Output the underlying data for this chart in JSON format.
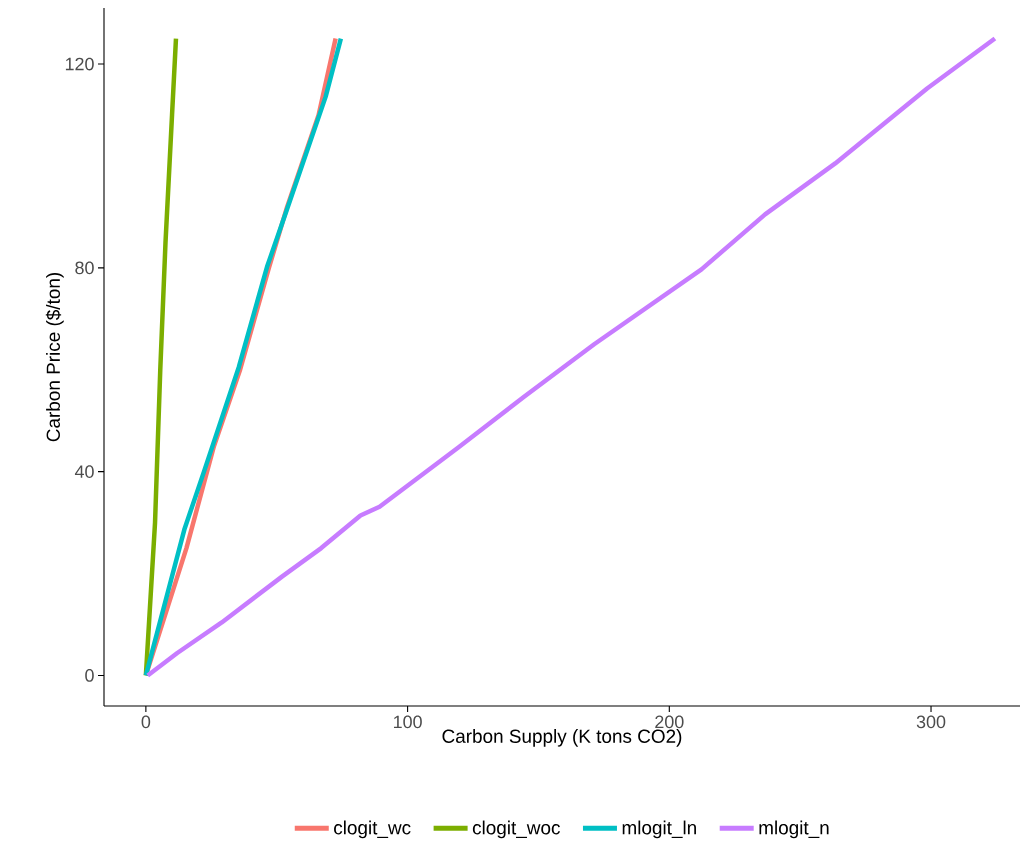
{
  "chart_data": {
    "type": "line",
    "xlabel": "Carbon Supply (K tons CO2)",
    "ylabel": "Carbon Price ($/ton)",
    "xlim": [
      -16,
      334
    ],
    "ylim": [
      -6,
      131
    ],
    "xticks": [
      0,
      100,
      200,
      300
    ],
    "yticks": [
      0,
      40,
      80,
      120
    ],
    "grid": false,
    "legend": "bottom",
    "marker": "none",
    "line_style": "solid",
    "series": [
      {
        "name": "clogit_wc",
        "color": "#f8766d",
        "x": [
          0,
          15.5,
          26,
          36,
          47,
          54,
          66,
          72.5
        ],
        "values": [
          0,
          25,
          45,
          60,
          80,
          92,
          110,
          125
        ]
      },
      {
        "name": "clogit_woc",
        "color": "#7cae00",
        "x": [
          0,
          3.5,
          5.5,
          7.5,
          10,
          11.5
        ],
        "values": [
          0,
          30,
          60,
          85,
          110,
          125
        ]
      },
      {
        "name": "mlogit_ln",
        "color": "#00bfc4",
        "x": [
          0,
          14.8,
          22.2,
          35.5,
          46.3,
          53.8,
          68.7,
          74.5
        ],
        "values": [
          0,
          28.8,
          40,
          60.5,
          80.2,
          91.3,
          113.6,
          125
        ]
      },
      {
        "name": "mlogit_n",
        "color": "#c77cff",
        "x": [
          0.7,
          12,
          29,
          52,
          67,
          82,
          89.3,
          119.5,
          144.5,
          171.3,
          212.3,
          236.6,
          263.4,
          298.5,
          324.4
        ],
        "values": [
          0,
          4.4,
          10.4,
          19.4,
          25,
          31.4,
          33.1,
          44.8,
          54.7,
          65,
          79.7,
          90.5,
          100.5,
          115.2,
          125
        ]
      }
    ]
  }
}
